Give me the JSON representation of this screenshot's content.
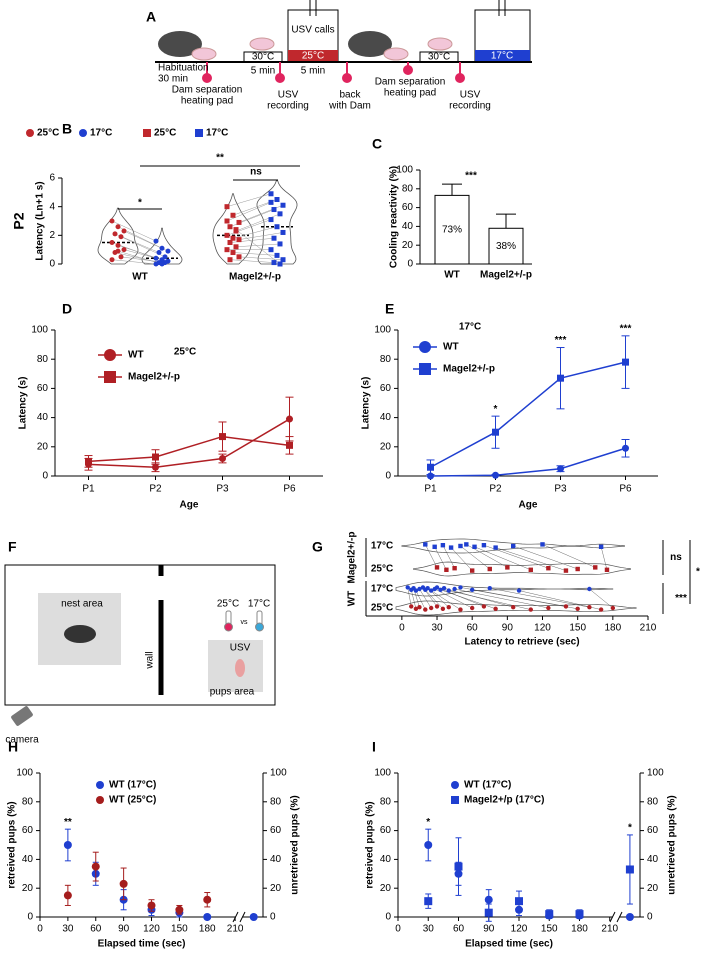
{
  "panel_labels": [
    "A",
    "B",
    "C",
    "D",
    "E",
    "F",
    "G",
    "H",
    "I"
  ],
  "protocol": {
    "habituation": "Habituation",
    "habituation_time": "30 min",
    "temp_1": "30°C",
    "time_1": "5 min",
    "usv_calls": "USV calls",
    "temp_2": "25°C",
    "time_2": "5 min",
    "temp_3": "30°C",
    "temp_4": "17°C",
    "events": [
      [
        "Dam separation",
        "heating pad"
      ],
      [
        "USV",
        "recording"
      ],
      [
        "back",
        "with Dam"
      ],
      [
        "Dam separation",
        "heating pad"
      ],
      [
        "USV",
        "recording"
      ]
    ]
  },
  "setup": {
    "nest": "nest area",
    "wall": "wall",
    "temp_a": "25°C",
    "vs": "vs",
    "temp_b": "17°C",
    "usv": "USV",
    "pups": "pups area",
    "camera": "camera"
  },
  "chart_data": [
    {
      "type": "violin",
      "title": "P2",
      "ylabel": "Latency (Ln+1 s)",
      "categories": [
        "WT",
        "Magel2+/-p"
      ],
      "series": [
        {
          "name": "25°C",
          "color": "#c0282d",
          "marker": "circle",
          "values": [
            3.0,
            2.6,
            2.3,
            2.1,
            1.9,
            1.5,
            1.3,
            1.0,
            0.8,
            0.5,
            0.3,
            0.9
          ]
        },
        {
          "name": "17°C",
          "color": "#1f3fd0",
          "marker": "circle",
          "values": [
            1.6,
            1.1,
            0.9,
            0.8,
            0.5,
            0.4,
            0.3,
            0.2,
            0.1,
            0.1,
            0,
            0
          ]
        },
        {
          "name": "25°C",
          "color": "#c0282d",
          "marker": "square",
          "values": [
            4.0,
            3.4,
            2.9,
            2.6,
            2.3,
            2.0,
            1.8,
            1.7,
            1.5,
            1.2,
            1.0,
            0.8,
            0.5,
            0.3,
            2.4,
            3.0
          ]
        },
        {
          "name": "17°C",
          "color": "#1f3fd0",
          "marker": "square",
          "values": [
            4.9,
            4.5,
            4.1,
            3.8,
            3.5,
            3.1,
            2.6,
            2.2,
            1.8,
            1.4,
            1.0,
            0.6,
            0.3,
            0.1,
            0,
            4.3
          ]
        }
      ],
      "ylim": [
        0,
        6
      ],
      "yticks": [
        0,
        2,
        4,
        6
      ],
      "annotations": [
        "*",
        "**",
        "ns"
      ]
    },
    {
      "type": "bar",
      "ylabel": "Cooling reactivity (%)",
      "categories": [
        "WT",
        "Magel2+/-p"
      ],
      "values": [
        73,
        38
      ],
      "value_labels": [
        "73%",
        "38%"
      ],
      "errors": [
        12,
        15
      ],
      "color": "#ffffff",
      "ylim": [
        0,
        100
      ],
      "yticks": [
        0,
        20,
        40,
        60,
        80,
        100
      ],
      "annotations": [
        "***"
      ]
    },
    {
      "type": "line",
      "title": "25°C",
      "xlabel": "Age",
      "ylabel": "Latency (s)",
      "categories": [
        "P1",
        "P2",
        "P3",
        "P6"
      ],
      "series": [
        {
          "name": "WT",
          "color": "#b01f24",
          "marker": "circle",
          "values": [
            8,
            6,
            12,
            39
          ],
          "errors": [
            4,
            3,
            3,
            15
          ]
        },
        {
          "name": "Magel2+/-p",
          "color": "#b01f24",
          "marker": "square",
          "values": [
            10,
            13,
            27,
            21
          ],
          "errors": [
            4,
            5,
            10,
            6
          ]
        }
      ],
      "ylim": [
        0,
        100
      ],
      "yticks": [
        0,
        20,
        40,
        60,
        80,
        100
      ],
      "annotations": [
        null,
        null,
        null,
        null
      ]
    },
    {
      "type": "line",
      "title": "17°C",
      "xlabel": "Age",
      "ylabel": "Latency (s)",
      "categories": [
        "P1",
        "P2",
        "P3",
        "P6"
      ],
      "series": [
        {
          "name": "WT",
          "color": "#1f3fd0",
          "marker": "circle",
          "values": [
            0,
            0.5,
            5,
            19
          ],
          "errors": [
            0,
            0.5,
            2,
            6
          ]
        },
        {
          "name": "Magel2+/-p",
          "color": "#1f3fd0",
          "marker": "square",
          "values": [
            6,
            30,
            67,
            78
          ],
          "errors": [
            5,
            11,
            21,
            18
          ]
        }
      ],
      "ylim": [
        0,
        100
      ],
      "yticks": [
        0,
        20,
        40,
        60,
        80,
        100
      ],
      "annotations": [
        null,
        "*",
        "***",
        "***"
      ]
    },
    {
      "type": "strip",
      "xlabel": "Latency to retrieve (sec)",
      "groups": [
        "Magel2+/-p",
        "WT"
      ],
      "series": [
        {
          "name": "17°C",
          "color": "#1f3fd0",
          "marker": "square",
          "values": [
            20,
            28,
            35,
            42,
            50,
            55,
            62,
            70,
            80,
            95,
            120,
            170
          ]
        },
        {
          "name": "25°C",
          "color": "#b01f24",
          "marker": "square",
          "values": [
            30,
            38,
            45,
            60,
            75,
            90,
            110,
            125,
            140,
            150,
            165,
            175
          ]
        },
        {
          "name": "17°C",
          "color": "#1f3fd0",
          "marker": "circle",
          "values": [
            5,
            8,
            10,
            12,
            15,
            18,
            20,
            22,
            25,
            28,
            30,
            33,
            36,
            40,
            45,
            50,
            60,
            75,
            100,
            160
          ]
        },
        {
          "name": "25°C",
          "color": "#b01f24",
          "marker": "circle",
          "values": [
            8,
            12,
            15,
            20,
            25,
            30,
            35,
            40,
            50,
            60,
            70,
            80,
            95,
            110,
            125,
            140,
            150,
            160,
            170,
            180
          ]
        }
      ],
      "xlim": [
        -5,
        210
      ],
      "xticks": [
        0,
        30,
        60,
        90,
        120,
        150,
        180,
        210
      ],
      "annotations": [
        "ns",
        "***",
        "*"
      ]
    },
    {
      "type": "scatter",
      "xlabel": "Elapsed time (sec)",
      "ylabel": "retreived pups (%)",
      "y2label": "unretrieved pups (%)",
      "x": [
        30,
        60,
        90,
        120,
        150,
        180
      ],
      "series": [
        {
          "name": "WT (17°C)",
          "color": "#1f3fd0",
          "marker": "circle",
          "values": [
            50,
            30,
            12,
            5,
            3,
            0
          ],
          "errors": [
            11,
            8,
            7,
            4,
            3,
            0
          ]
        },
        {
          "name": "WT (25°C)",
          "color": "#a51d1d",
          "marker": "circle",
          "values": [
            15,
            35,
            23,
            8,
            5,
            12
          ],
          "errors": [
            7,
            10,
            11,
            4,
            3,
            5
          ]
        },
        {
          "color": "#1f3fd0",
          "marker": "circle",
          "axis": "y2",
          "x": [
            230
          ],
          "values": [
            0
          ],
          "errors": [
            0
          ]
        }
      ],
      "xlim": [
        0,
        240
      ],
      "xticks": [
        0,
        30,
        60,
        90,
        120,
        150,
        180,
        210
      ],
      "ylim": [
        0,
        100
      ],
      "yticks": [
        0,
        20,
        40,
        60,
        80,
        100
      ],
      "y2lim": [
        0,
        100
      ],
      "y2ticks": [
        0,
        20,
        40,
        60,
        80,
        100
      ],
      "annotations": [
        "**",
        null,
        null,
        null,
        null,
        null
      ]
    },
    {
      "type": "scatter",
      "xlabel": "Elapsed time (sec)",
      "ylabel": "retreived pups (%)",
      "y2label": "unretrieved pups (%)",
      "x": [
        30,
        60,
        90,
        120,
        150,
        180
      ],
      "series": [
        {
          "name": "WT (17°C)",
          "color": "#1f3fd0",
          "marker": "circle",
          "values": [
            50,
            30,
            12,
            5,
            1,
            1
          ],
          "errors": [
            11,
            8,
            7,
            4,
            2,
            2
          ]
        },
        {
          "name": "Magel2+/p (17°C)",
          "color": "#1f3fd0",
          "marker": "square",
          "values": [
            11,
            35,
            3,
            11,
            2,
            2
          ],
          "errors": [
            5,
            20,
            6,
            7,
            3,
            3
          ]
        },
        {
          "color": "#1f3fd0",
          "marker": "circle",
          "axis": "y2",
          "x": [
            230
          ],
          "values": [
            0
          ],
          "errors": [
            0
          ]
        },
        {
          "color": "#1f3fd0",
          "marker": "square",
          "axis": "y2",
          "x": [
            230
          ],
          "values": [
            33
          ],
          "errors": [
            24
          ],
          "annotations": [
            "*"
          ]
        }
      ],
      "xlim": [
        0,
        240
      ],
      "xticks": [
        0,
        30,
        60,
        90,
        120,
        150,
        180,
        210
      ],
      "ylim": [
        0,
        100
      ],
      "yticks": [
        0,
        20,
        40,
        60,
        80,
        100
      ],
      "y2lim": [
        0,
        100
      ],
      "y2ticks": [
        0,
        20,
        40,
        60,
        80,
        100
      ],
      "annotations": [
        "*",
        null,
        null,
        null,
        null,
        null
      ]
    }
  ]
}
